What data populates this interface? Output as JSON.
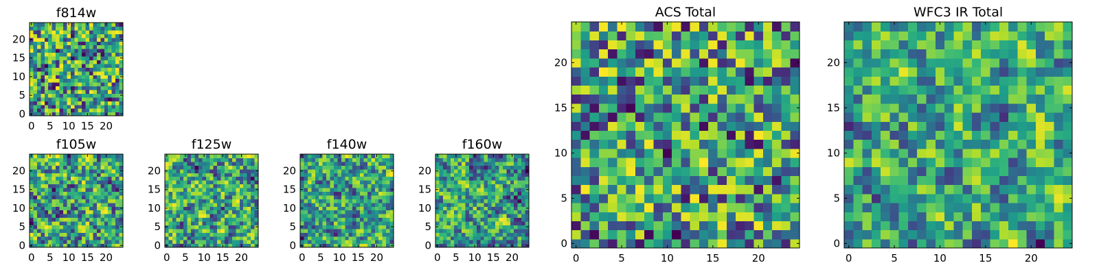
{
  "chart_data": [
    {
      "type": "heatmap",
      "title": "f814w",
      "colormap": "viridis",
      "x_ticks": [
        "0",
        "5",
        "10",
        "15",
        "20"
      ],
      "y_ticks": [
        "0",
        "5",
        "10",
        "15",
        "20"
      ],
      "xlim": [
        0,
        24
      ],
      "ylim": [
        0,
        24
      ],
      "grid_size": 25,
      "seed": 11,
      "smooth": 0
    },
    {
      "type": "heatmap",
      "title": "f105w",
      "colormap": "viridis",
      "x_ticks": [
        "0",
        "5",
        "10",
        "15",
        "20"
      ],
      "y_ticks": [
        "0",
        "5",
        "10",
        "15",
        "20"
      ],
      "xlim": [
        0,
        24
      ],
      "ylim": [
        0,
        24
      ],
      "grid_size": 25,
      "seed": 23,
      "smooth": 1
    },
    {
      "type": "heatmap",
      "title": "f125w",
      "colormap": "viridis",
      "x_ticks": [
        "0",
        "5",
        "10",
        "15",
        "20"
      ],
      "y_ticks": [
        "0",
        "5",
        "10",
        "15",
        "20"
      ],
      "xlim": [
        0,
        24
      ],
      "ylim": [
        0,
        24
      ],
      "grid_size": 25,
      "seed": 37,
      "smooth": 1
    },
    {
      "type": "heatmap",
      "title": "f140w",
      "colormap": "viridis",
      "x_ticks": [
        "0",
        "5",
        "10",
        "15",
        "20"
      ],
      "y_ticks": [
        "0",
        "5",
        "10",
        "15",
        "20"
      ],
      "xlim": [
        0,
        24
      ],
      "ylim": [
        0,
        24
      ],
      "grid_size": 25,
      "seed": 41,
      "smooth": 1
    },
    {
      "type": "heatmap",
      "title": "f160w",
      "colormap": "viridis",
      "x_ticks": [
        "0",
        "5",
        "10",
        "15",
        "20"
      ],
      "y_ticks": [
        "0",
        "5",
        "10",
        "15",
        "20"
      ],
      "xlim": [
        0,
        24
      ],
      "ylim": [
        0,
        24
      ],
      "grid_size": 25,
      "seed": 53,
      "smooth": 1
    },
    {
      "type": "heatmap",
      "title": "ACS Total",
      "colormap": "viridis",
      "x_ticks": [
        "0",
        "5",
        "10",
        "15",
        "20"
      ],
      "y_ticks": [
        "0",
        "5",
        "10",
        "15",
        "20"
      ],
      "xlim": [
        0,
        24
      ],
      "ylim": [
        0,
        24
      ],
      "grid_size": 25,
      "seed": 67,
      "smooth": 0
    },
    {
      "type": "heatmap",
      "title": "WFC3 IR Total",
      "colormap": "viridis",
      "x_ticks": [
        "0",
        "5",
        "10",
        "15",
        "20"
      ],
      "y_ticks": [
        "0",
        "5",
        "10",
        "15",
        "20"
      ],
      "xlim": [
        0,
        24
      ],
      "ylim": [
        0,
        24
      ],
      "grid_size": 25,
      "seed": 79,
      "smooth": 1
    }
  ]
}
